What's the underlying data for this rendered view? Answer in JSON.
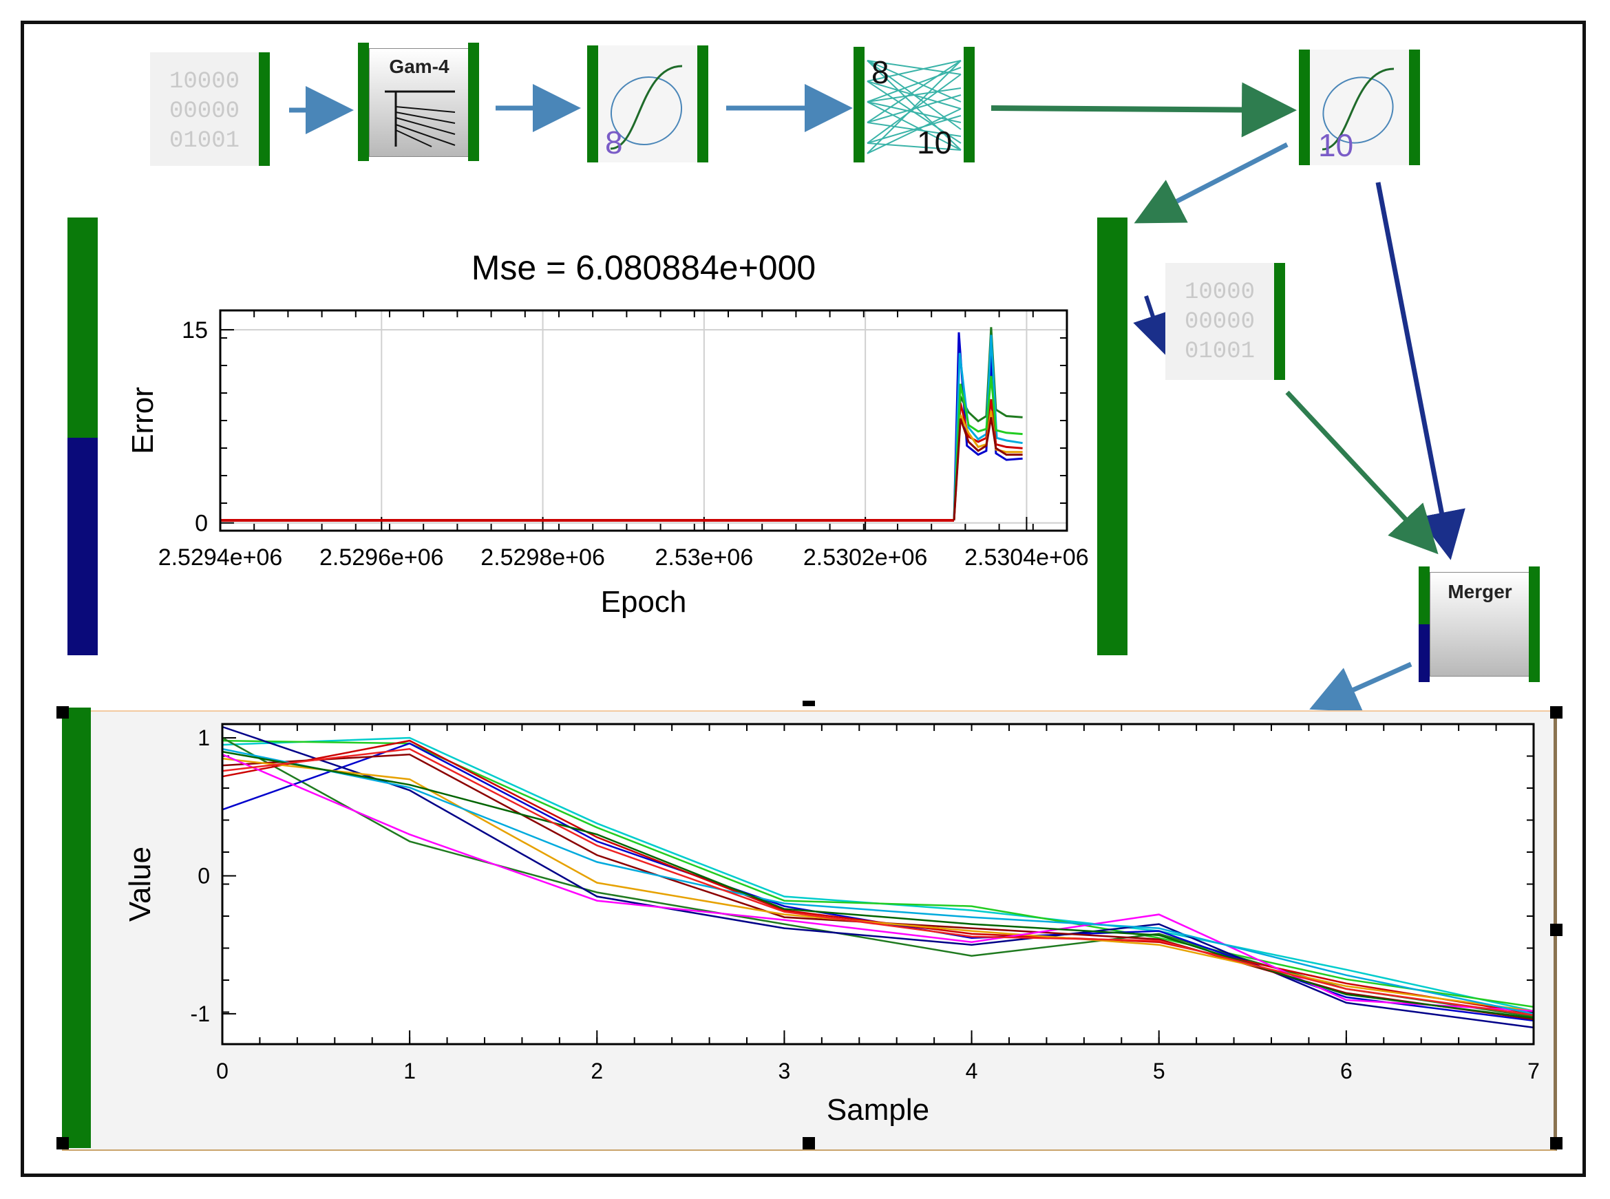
{
  "bits_pattern": [
    "10000",
    "00000",
    "01001"
  ],
  "gamma_label": "Gam-4",
  "activation_1_count": "8",
  "dense_labels": {
    "in": "8",
    "out": "10"
  },
  "activation_2_count": "10",
  "merger_label": "Merger",
  "colors": {
    "node_green": "#0a7a0a",
    "node_navy": "#0a0a7a",
    "wire_blue": "#4a86b8",
    "wire_green": "#2e7d4f"
  },
  "chart_data": [
    {
      "type": "line",
      "title": "Mse = 6.080884e+000",
      "xlabel": "Epoch",
      "ylabel": "Error",
      "xlim": [
        2529400,
        2530450
      ],
      "ylim": [
        -0.6,
        16.5
      ],
      "xticks": [
        "2.5294e+06",
        "2.5296e+06",
        "2.5298e+06",
        "2.53e+06",
        "2.5302e+06",
        "2.5304e+06"
      ],
      "xtick_values": [
        2529400,
        2529600,
        2529800,
        2530000,
        2530200,
        2530400
      ],
      "yticks": [
        "0",
        "15"
      ],
      "ytick_values": [
        0,
        15
      ],
      "grid": true,
      "flat_value": 0.2,
      "flat_until": 2530310,
      "series": [
        {
          "color": "#1f7a1f",
          "x": [
            2530310,
            2530318,
            2530328,
            2530340,
            2530350,
            2530356,
            2530362,
            2530375,
            2530395
          ],
          "y": [
            0.2,
            9.8,
            8.6,
            7.9,
            8.3,
            15.2,
            8.8,
            8.3,
            8.2
          ]
        },
        {
          "color": "#0000cc",
          "x": [
            2530310,
            2530316,
            2530326,
            2530340,
            2530350,
            2530356,
            2530362,
            2530375,
            2530395
          ],
          "y": [
            0.2,
            14.8,
            6.0,
            5.3,
            5.6,
            13.0,
            5.4,
            4.9,
            5.0
          ]
        },
        {
          "color": "#00aadd",
          "x": [
            2530310,
            2530317,
            2530328,
            2530340,
            2530350,
            2530356,
            2530363,
            2530375,
            2530395
          ],
          "y": [
            0.2,
            13.2,
            7.4,
            6.5,
            6.9,
            14.6,
            6.6,
            6.4,
            6.2
          ]
        },
        {
          "color": "#cc0000",
          "x": [
            2530310,
            2530318,
            2530328,
            2530340,
            2530350,
            2530356,
            2530362,
            2530375,
            2530395
          ],
          "y": [
            0.2,
            9.3,
            6.7,
            6.3,
            6.6,
            9.6,
            6.1,
            5.9,
            5.8
          ]
        },
        {
          "color": "#e6a100",
          "x": [
            2530310,
            2530318,
            2530328,
            2530340,
            2530350,
            2530356,
            2530362,
            2530375,
            2530395
          ],
          "y": [
            0.2,
            8.4,
            7.0,
            5.9,
            6.1,
            8.7,
            5.7,
            5.5,
            5.5
          ]
        },
        {
          "color": "#22cc22",
          "x": [
            2530310,
            2530318,
            2530328,
            2530340,
            2530350,
            2530356,
            2530362,
            2530375,
            2530395
          ],
          "y": [
            0.2,
            10.8,
            7.6,
            7.1,
            7.3,
            11.4,
            7.2,
            7.0,
            6.9
          ]
        },
        {
          "color": "#8b0000",
          "x": [
            2530310,
            2530318,
            2530328,
            2530340,
            2530350,
            2530356,
            2530362,
            2530375,
            2530395
          ],
          "y": [
            0.2,
            8.1,
            6.3,
            5.6,
            6.0,
            8.2,
            5.8,
            5.3,
            5.3
          ]
        }
      ]
    },
    {
      "type": "line",
      "xlabel": "Sample",
      "ylabel": "Value",
      "xlim": [
        0,
        7
      ],
      "ylim": [
        -1.22,
        1.1
      ],
      "xticks": [
        "0",
        "1",
        "2",
        "3",
        "4",
        "5",
        "6",
        "7"
      ],
      "xtick_values": [
        0,
        1,
        2,
        3,
        4,
        5,
        6,
        7
      ],
      "yticks": [
        "1",
        "0",
        "-1"
      ],
      "ytick_values": [
        1,
        0,
        -1
      ],
      "grid": false,
      "series": [
        {
          "color": "#00cccc",
          "x": [
            0,
            1,
            2,
            3,
            4,
            5,
            6,
            7
          ],
          "y": [
            0.95,
            1.0,
            0.38,
            -0.15,
            -0.25,
            -0.4,
            -0.68,
            -0.98
          ]
        },
        {
          "color": "#22cc22",
          "x": [
            0,
            1,
            2,
            3,
            4,
            5,
            6,
            7
          ],
          "y": [
            0.98,
            0.96,
            0.35,
            -0.18,
            -0.22,
            -0.45,
            -0.75,
            -0.95
          ]
        },
        {
          "color": "#1f7a1f",
          "x": [
            0,
            1,
            2,
            3,
            4,
            5,
            6,
            7
          ],
          "y": [
            1.0,
            0.25,
            -0.12,
            -0.35,
            -0.58,
            -0.42,
            -0.82,
            -1.02
          ]
        },
        {
          "color": "#0000cc",
          "x": [
            0,
            1,
            2,
            3,
            4,
            5,
            6,
            7
          ],
          "y": [
            0.48,
            0.96,
            0.25,
            -0.22,
            -0.45,
            -0.4,
            -0.88,
            -1.05
          ]
        },
        {
          "color": "#000088",
          "x": [
            0,
            1,
            2,
            3,
            4,
            5,
            6,
            7
          ],
          "y": [
            1.08,
            0.62,
            -0.15,
            -0.38,
            -0.5,
            -0.35,
            -0.92,
            -1.1
          ]
        },
        {
          "color": "#cc0000",
          "x": [
            0,
            1,
            2,
            3,
            4,
            5,
            6,
            7
          ],
          "y": [
            0.72,
            0.98,
            0.28,
            -0.25,
            -0.42,
            -0.48,
            -0.78,
            -1.0
          ]
        },
        {
          "color": "#8b0000",
          "x": [
            0,
            1,
            2,
            3,
            4,
            5,
            6,
            7
          ],
          "y": [
            0.8,
            0.88,
            0.15,
            -0.3,
            -0.38,
            -0.46,
            -0.85,
            -1.04
          ]
        },
        {
          "color": "#e6a100",
          "x": [
            0,
            1,
            2,
            3,
            4,
            5,
            6,
            7
          ],
          "y": [
            0.85,
            0.7,
            -0.05,
            -0.28,
            -0.4,
            -0.5,
            -0.8,
            -0.98
          ]
        },
        {
          "color": "#ff00ff",
          "x": [
            0,
            1,
            2,
            3,
            4,
            5,
            6,
            7
          ],
          "y": [
            0.88,
            0.3,
            -0.18,
            -0.32,
            -0.48,
            -0.28,
            -0.9,
            -0.98
          ]
        },
        {
          "color": "#00aadd",
          "x": [
            0,
            1,
            2,
            3,
            4,
            5,
            6,
            7
          ],
          "y": [
            0.92,
            0.64,
            0.1,
            -0.2,
            -0.3,
            -0.38,
            -0.72,
            -1.0
          ]
        },
        {
          "color": "#006400",
          "x": [
            0,
            1,
            2,
            3,
            4,
            5,
            6,
            7
          ],
          "y": [
            0.9,
            0.66,
            0.3,
            -0.24,
            -0.35,
            -0.43,
            -0.86,
            -1.03
          ]
        },
        {
          "color": "#ee2222",
          "x": [
            0,
            1,
            2,
            3,
            4,
            5,
            6,
            7
          ],
          "y": [
            0.76,
            0.92,
            0.22,
            -0.26,
            -0.44,
            -0.47,
            -0.82,
            -1.01
          ]
        }
      ]
    }
  ]
}
